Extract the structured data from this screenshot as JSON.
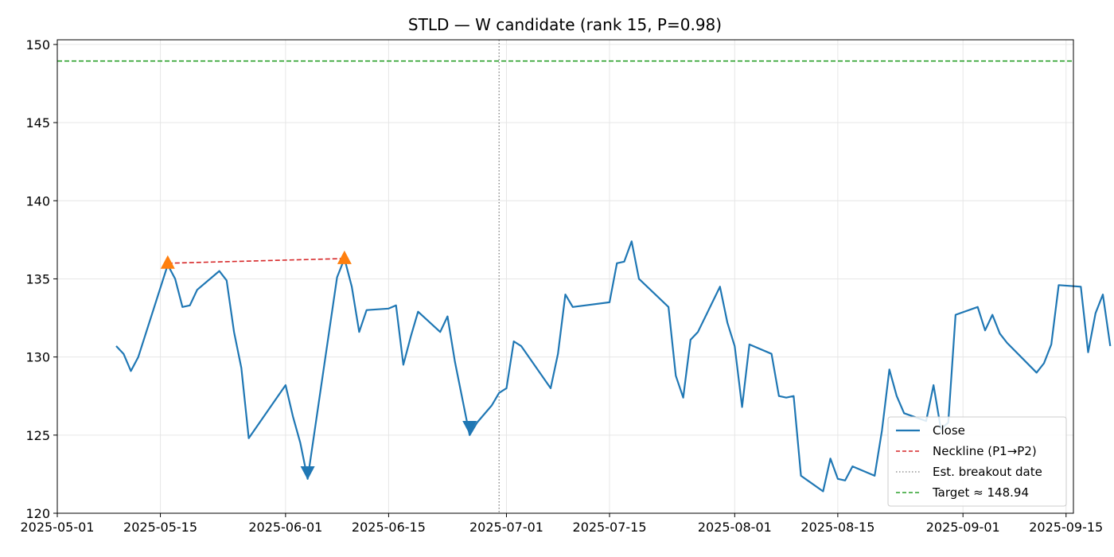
{
  "chart_data": {
    "type": "line",
    "title": "STLD — W candidate (rank 15, P=0.98)",
    "xlabel": "",
    "ylabel": "",
    "xlim": [
      "2025-05-01",
      "2025-09-16"
    ],
    "ylim": [
      120,
      150.3
    ],
    "grid": true,
    "legend_position": "bottom-right",
    "x_ticks": [
      "2025-05-01",
      "2025-05-15",
      "2025-06-01",
      "2025-06-15",
      "2025-07-01",
      "2025-07-15",
      "2025-08-01",
      "2025-08-15",
      "2025-09-01",
      "2025-09-15"
    ],
    "y_ticks": [
      120,
      125,
      130,
      135,
      140,
      145,
      150
    ],
    "series": [
      {
        "name": "Close",
        "color": "#1f77b4",
        "points": [
          [
            "2025-05-09",
            130.7
          ],
          [
            "2025-05-10",
            130.2
          ],
          [
            "2025-05-11",
            129.1
          ],
          [
            "2025-05-12",
            130.0
          ],
          [
            "2025-05-16",
            135.9
          ],
          [
            "2025-05-17",
            135.0
          ],
          [
            "2025-05-18",
            133.2
          ],
          [
            "2025-05-19",
            133.3
          ],
          [
            "2025-05-20",
            134.3
          ],
          [
            "2025-05-23",
            135.5
          ],
          [
            "2025-05-24",
            134.9
          ],
          [
            "2025-05-25",
            131.6
          ],
          [
            "2025-05-26",
            129.3
          ],
          [
            "2025-05-27",
            124.8
          ],
          [
            "2025-06-01",
            128.2
          ],
          [
            "2025-06-02",
            126.2
          ],
          [
            "2025-06-03",
            124.5
          ],
          [
            "2025-06-04",
            122.2
          ],
          [
            "2025-06-08",
            135.1
          ],
          [
            "2025-06-09",
            136.3
          ],
          [
            "2025-06-10",
            134.5
          ],
          [
            "2025-06-11",
            131.6
          ],
          [
            "2025-06-12",
            133.0
          ],
          [
            "2025-06-15",
            133.1
          ],
          [
            "2025-06-16",
            133.3
          ],
          [
            "2025-06-17",
            129.5
          ],
          [
            "2025-06-18",
            131.3
          ],
          [
            "2025-06-19",
            132.9
          ],
          [
            "2025-06-22",
            131.6
          ],
          [
            "2025-06-23",
            132.6
          ],
          [
            "2025-06-24",
            129.7
          ],
          [
            "2025-06-26",
            125.0
          ],
          [
            "2025-06-27",
            125.8
          ],
          [
            "2025-06-29",
            126.9
          ],
          [
            "2025-06-30",
            127.7
          ],
          [
            "2025-07-01",
            128.0
          ],
          [
            "2025-07-02",
            131.0
          ],
          [
            "2025-07-03",
            130.7
          ],
          [
            "2025-07-07",
            128.0
          ],
          [
            "2025-07-08",
            130.2
          ],
          [
            "2025-07-09",
            134.0
          ],
          [
            "2025-07-10",
            133.2
          ],
          [
            "2025-07-15",
            133.5
          ],
          [
            "2025-07-16",
            136.0
          ],
          [
            "2025-07-17",
            136.1
          ],
          [
            "2025-07-18",
            137.4
          ],
          [
            "2025-07-19",
            135.0
          ],
          [
            "2025-07-23",
            133.2
          ],
          [
            "2025-07-24",
            128.8
          ],
          [
            "2025-07-25",
            127.4
          ],
          [
            "2025-07-26",
            131.1
          ],
          [
            "2025-07-27",
            131.6
          ],
          [
            "2025-07-30",
            134.5
          ],
          [
            "2025-07-31",
            132.2
          ],
          [
            "2025-08-01",
            130.7
          ],
          [
            "2025-08-02",
            126.8
          ],
          [
            "2025-08-03",
            130.8
          ],
          [
            "2025-08-06",
            130.2
          ],
          [
            "2025-08-07",
            127.5
          ],
          [
            "2025-08-08",
            127.4
          ],
          [
            "2025-08-09",
            127.5
          ],
          [
            "2025-08-10",
            122.4
          ],
          [
            "2025-08-13",
            121.4
          ],
          [
            "2025-08-14",
            123.5
          ],
          [
            "2025-08-15",
            122.2
          ],
          [
            "2025-08-16",
            122.1
          ],
          [
            "2025-08-17",
            123.0
          ],
          [
            "2025-08-20",
            122.4
          ],
          [
            "2025-08-21",
            125.3
          ],
          [
            "2025-08-22",
            129.2
          ],
          [
            "2025-08-23",
            127.5
          ],
          [
            "2025-08-24",
            126.4
          ],
          [
            "2025-08-27",
            125.9
          ],
          [
            "2025-08-28",
            128.2
          ],
          [
            "2025-08-29",
            125.4
          ],
          [
            "2025-08-30",
            125.8
          ],
          [
            "2025-08-31",
            132.7
          ],
          [
            "2025-09-03",
            133.2
          ],
          [
            "2025-09-04",
            131.7
          ],
          [
            "2025-09-05",
            132.7
          ],
          [
            "2025-09-06",
            131.5
          ],
          [
            "2025-09-07",
            130.9
          ],
          [
            "2025-09-11",
            129.0
          ],
          [
            "2025-09-12",
            129.6
          ],
          [
            "2025-09-13",
            130.8
          ],
          [
            "2025-09-14",
            134.6
          ],
          [
            "2025-09-17",
            134.5
          ],
          [
            "2025-09-18",
            130.3
          ],
          [
            "2025-09-19",
            132.8
          ],
          [
            "2025-09-20",
            134.0
          ],
          [
            "2025-09-21",
            130.7
          ]
        ]
      }
    ],
    "peaks": [
      [
        "2025-05-16",
        136.0
      ],
      [
        "2025-06-09",
        136.3
      ]
    ],
    "troughs": [
      [
        "2025-06-04",
        122.6
      ],
      [
        "2025-06-26",
        125.5
      ]
    ],
    "neckline": {
      "name": "Neckline (P1→P2)",
      "color": "#d62728",
      "from": [
        "2025-05-16",
        136.0
      ],
      "to": [
        "2025-06-09",
        136.3
      ]
    },
    "breakout": {
      "name": "Est. breakout date",
      "color": "#7f7f7f",
      "date": "2025-06-30"
    },
    "target": {
      "name": "Target ≈ 148.94",
      "color": "#2ca02c",
      "value": 148.94
    },
    "peak_marker_color": "#ff7f0e",
    "trough_marker_color": "#1f77b4"
  }
}
